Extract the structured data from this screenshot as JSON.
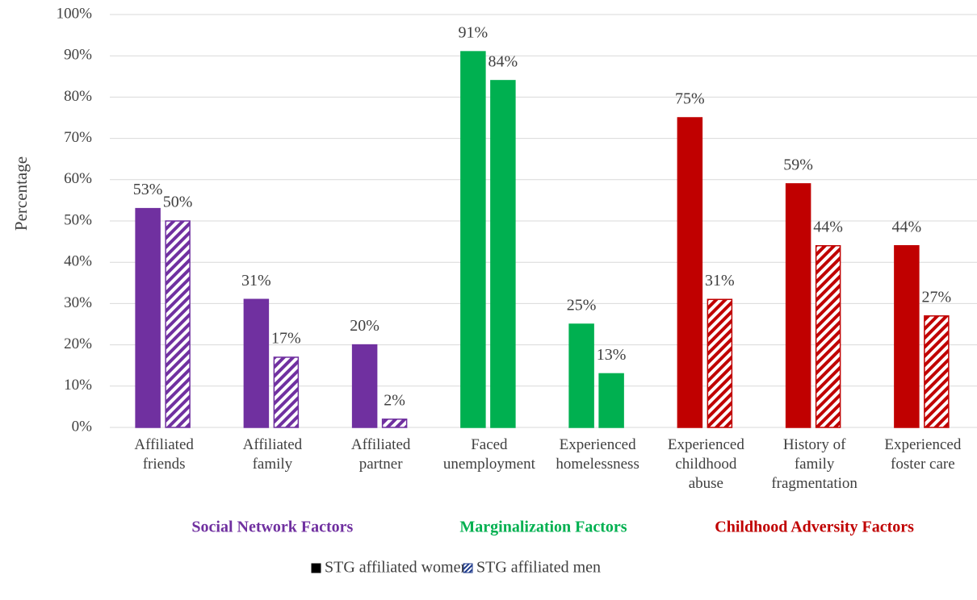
{
  "chart_data": {
    "type": "bar",
    "y_label": "Percentage",
    "categories": [
      "Affiliated\nfriends",
      "Affiliated\nfamily",
      "Affiliated\npartner",
      "Faced\nunemployment",
      "Experienced\nhomelessness",
      "Experienced\nchildhood\nabuse",
      "History of\nfamily\nfragmentation",
      "Experienced\nfoster care"
    ],
    "series": [
      {
        "name": "STG affiliated women",
        "color": "#000000",
        "colors": [
          "#7030a0",
          "#7030a0",
          "#7030a0",
          "#00b050",
          "#00b050",
          "#c00000",
          "#c00000",
          "#c00000"
        ],
        "hatched": [
          false,
          false,
          false,
          false,
          false,
          false,
          false,
          false
        ],
        "values": [
          53,
          31,
          20,
          91,
          25,
          75,
          59,
          44
        ],
        "value_labels": [
          "53%",
          "31%",
          "20%",
          "91%",
          "25%",
          "75%",
          "59%",
          "44%"
        ]
      },
      {
        "name": "STG affiliated men",
        "color": "#1f3b8c",
        "colors": [
          "#7030a0",
          "#7030a0",
          "#7030a0",
          "#00b050",
          "#00b050",
          "#c00000",
          "#c00000",
          "#c00000"
        ],
        "hatched": [
          true,
          true,
          true,
          false,
          false,
          true,
          true,
          true
        ],
        "values": [
          50,
          17,
          2,
          84,
          13,
          31,
          44,
          27
        ],
        "value_labels": [
          "50%",
          "17%",
          "2%",
          "84%",
          "13%",
          "31%",
          "44%",
          "27%"
        ]
      }
    ],
    "groups": [
      {
        "label": "Social Network Factors",
        "color": "#7030a0"
      },
      {
        "label": "Marginalization Factors",
        "color": "#00b050"
      },
      {
        "label": "Childhood Adversity Factors",
        "color": "#c00000"
      }
    ],
    "ylim": [
      0,
      100
    ],
    "yticks": [
      {
        "value": 0,
        "label": "0%"
      },
      {
        "value": 10,
        "label": "10%"
      },
      {
        "value": 20,
        "label": "20%"
      },
      {
        "value": 30,
        "label": "30%"
      },
      {
        "value": 40,
        "label": "40%"
      },
      {
        "value": 50,
        "label": "50%"
      },
      {
        "value": 60,
        "label": "60%"
      },
      {
        "value": 70,
        "label": "70%"
      },
      {
        "value": 80,
        "label": "80%"
      },
      {
        "value": 90,
        "label": "90%"
      },
      {
        "value": 100,
        "label": "100%"
      }
    ],
    "grid": true,
    "legend": "bottom"
  }
}
